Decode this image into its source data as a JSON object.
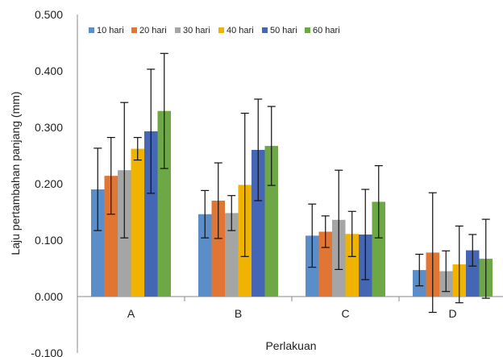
{
  "chart_data": {
    "type": "bar",
    "xlabel": "Perlakuan",
    "ylabel": "Laju pertambahan panjang (mm)",
    "categories": [
      "A",
      "B",
      "C",
      "D"
    ],
    "ylim": [
      -0.1,
      0.5
    ],
    "yticks": [
      -0.1,
      0.0,
      0.1,
      0.2,
      0.3,
      0.4,
      0.5
    ],
    "ytick_labels": [
      "-0.100",
      "0.000",
      "0.100",
      "0.200",
      "0.300",
      "0.400",
      "0.500"
    ],
    "grid": false,
    "legend_position": "top-left",
    "error_bars": true,
    "series": [
      {
        "name": "10 hari",
        "color": "#5B8EC9",
        "values": [
          0.19,
          0.146,
          0.108,
          0.047
        ],
        "errors": [
          0.073,
          0.042,
          0.056,
          0.028
        ]
      },
      {
        "name": "20 hari",
        "color": "#E07534",
        "values": [
          0.214,
          0.17,
          0.115,
          0.078
        ],
        "errors": [
          0.068,
          0.067,
          0.028,
          0.106
        ]
      },
      {
        "name": "30 hari",
        "color": "#A5A5A5",
        "values": [
          0.224,
          0.148,
          0.136,
          0.045
        ],
        "errors": [
          0.12,
          0.031,
          0.088,
          0.036
        ]
      },
      {
        "name": "40 hari",
        "color": "#F0B400",
        "values": [
          0.262,
          0.198,
          0.111,
          0.057
        ],
        "errors": [
          0.02,
          0.127,
          0.04,
          0.068
        ]
      },
      {
        "name": "50 hari",
        "color": "#4466B4",
        "values": [
          0.293,
          0.26,
          0.11,
          0.082
        ],
        "errors": [
          0.11,
          0.09,
          0.08,
          0.028
        ]
      },
      {
        "name": "60 hari",
        "color": "#6EA846",
        "values": [
          0.329,
          0.267,
          0.168,
          0.067
        ],
        "errors": [
          0.102,
          0.07,
          0.064,
          0.07
        ]
      }
    ]
  }
}
